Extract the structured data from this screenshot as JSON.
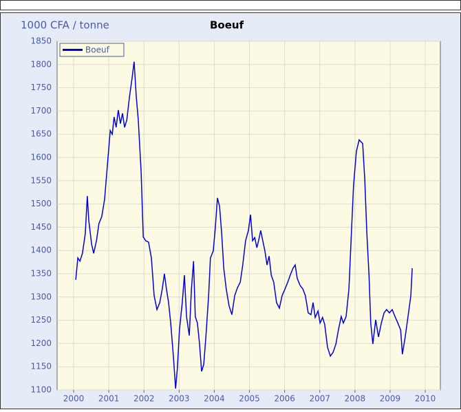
{
  "chart_data": {
    "type": "line",
    "title": "Boeuf",
    "y_label": "1000 CFA / tonne",
    "x": [
      2000.06,
      2000.12,
      2000.18,
      2000.25,
      2000.33,
      2000.39,
      2000.43,
      2000.51,
      2000.57,
      2000.65,
      2000.72,
      2000.8,
      2000.88,
      2000.96,
      2001.04,
      2001.1,
      2001.15,
      2001.21,
      2001.27,
      2001.33,
      2001.39,
      2001.45,
      2001.51,
      2001.59,
      2001.66,
      2001.72,
      2001.78,
      2001.84,
      2001.92,
      2001.98,
      2002.05,
      2002.13,
      2002.21,
      2002.29,
      2002.37,
      2002.45,
      2002.52,
      2002.58,
      2002.64,
      2002.7,
      2002.76,
      2002.84,
      2002.9,
      2002.95,
      2003.01,
      2003.09,
      2003.15,
      2003.21,
      2003.29,
      2003.35,
      2003.41,
      2003.46,
      2003.52,
      2003.58,
      2003.64,
      2003.7,
      2003.76,
      2003.84,
      2003.89,
      2003.97,
      2004.03,
      2004.09,
      2004.15,
      2004.21,
      2004.27,
      2004.34,
      2004.42,
      2004.5,
      2004.58,
      2004.66,
      2004.74,
      2004.81,
      2004.89,
      2004.97,
      2005.03,
      2005.09,
      2005.15,
      2005.21,
      2005.26,
      2005.32,
      2005.38,
      2005.44,
      2005.5,
      2005.56,
      2005.62,
      2005.69,
      2005.77,
      2005.85,
      2005.93,
      2006.01,
      2006.09,
      2006.16,
      2006.24,
      2006.3,
      2006.36,
      2006.44,
      2006.52,
      2006.59,
      2006.67,
      2006.75,
      2006.81,
      2006.87,
      2006.95,
      2007.01,
      2007.08,
      2007.14,
      2007.22,
      2007.3,
      2007.38,
      2007.46,
      2007.53,
      2007.61,
      2007.67,
      2007.75,
      2007.83,
      2007.89,
      2007.96,
      2008.04,
      2008.12,
      2008.22,
      2008.28,
      2008.34,
      2008.4,
      2008.45,
      2008.51,
      2008.59,
      2008.67,
      2008.75,
      2008.83,
      2008.9,
      2008.98,
      2009.06,
      2009.14,
      2009.22,
      2009.3,
      2009.35,
      2009.43,
      2009.51,
      2009.59,
      2009.63
    ],
    "series": [
      {
        "name": "Boeuf",
        "color": "#0000e0",
        "values": [
          1337,
          1384,
          1377,
          1394,
          1436,
          1517,
          1465,
          1414,
          1394,
          1421,
          1458,
          1473,
          1510,
          1584,
          1658,
          1650,
          1687,
          1665,
          1702,
          1673,
          1695,
          1665,
          1680,
          1732,
          1769,
          1806,
          1732,
          1680,
          1569,
          1429,
          1421,
          1418,
          1384,
          1303,
          1273,
          1288,
          1317,
          1350,
          1317,
          1288,
          1244,
          1170,
          1103,
          1147,
          1229,
          1288,
          1347,
          1258,
          1217,
          1317,
          1377,
          1258,
          1244,
          1199,
          1140,
          1155,
          1214,
          1303,
          1384,
          1399,
          1450,
          1513,
          1495,
          1436,
          1362,
          1317,
          1281,
          1262,
          1303,
          1320,
          1332,
          1369,
          1421,
          1443,
          1477,
          1421,
          1428,
          1406,
          1421,
          1443,
          1421,
          1399,
          1369,
          1388,
          1347,
          1332,
          1288,
          1276,
          1303,
          1317,
          1332,
          1347,
          1362,
          1369,
          1340,
          1325,
          1317,
          1303,
          1266,
          1262,
          1288,
          1256,
          1270,
          1244,
          1256,
          1241,
          1192,
          1173,
          1181,
          1199,
          1229,
          1258,
          1244,
          1258,
          1317,
          1421,
          1539,
          1613,
          1638,
          1630,
          1554,
          1436,
          1347,
          1244,
          1199,
          1251,
          1214,
          1244,
          1266,
          1273,
          1266,
          1273,
          1258,
          1244,
          1229,
          1177,
          1214,
          1258,
          1303,
          1362
        ]
      }
    ],
    "xlim": [
      1999.53,
      2010.43
    ],
    "ylim": [
      1100,
      1850
    ],
    "xticks": [
      2000,
      2001,
      2002,
      2003,
      2004,
      2005,
      2006,
      2007,
      2008,
      2009,
      2010
    ],
    "yticks": [
      1100,
      1150,
      1200,
      1250,
      1300,
      1350,
      1400,
      1450,
      1500,
      1550,
      1600,
      1650,
      1700,
      1750,
      1800,
      1850
    ],
    "grid": true,
    "legend": "upper left"
  }
}
